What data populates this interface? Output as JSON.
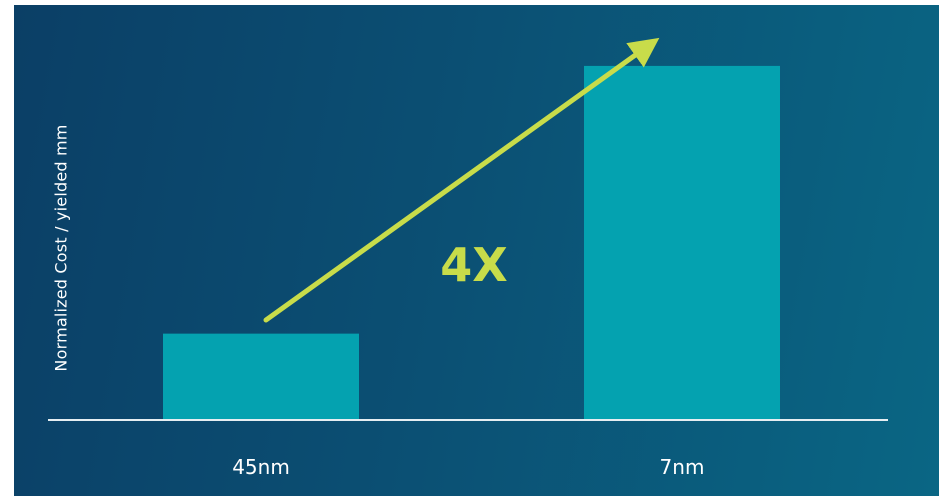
{
  "colors": {
    "background_left": "#0b3f66",
    "background_right": "#0a6684",
    "bar": "#04a2b0",
    "axis": "#e6eef2",
    "arrow": "#c8dc4a",
    "text": "#ffffff"
  },
  "chart_data": {
    "type": "bar",
    "title": "",
    "xlabel": "",
    "ylabel": "Normalized Cost / yielded mm",
    "categories": [
      "45nm",
      "7nm"
    ],
    "values": [
      1,
      4.1
    ],
    "ylim": [
      0,
      4.4
    ],
    "grid": false,
    "legend": "none",
    "annotations": [
      {
        "text": "4X",
        "type": "arrow",
        "from_category": "45nm",
        "to_category": "7nm"
      }
    ]
  }
}
